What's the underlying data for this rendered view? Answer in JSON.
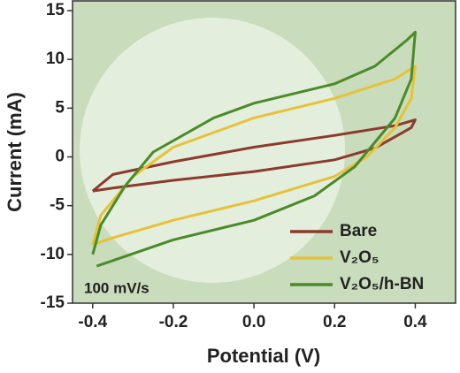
{
  "chart_data": {
    "type": "line",
    "xlabel": "Potential (V)",
    "ylabel": "Current (mA)",
    "annotation": "100 mV/s",
    "xlim": [
      -0.45,
      0.5
    ],
    "ylim": [
      -15,
      16
    ],
    "xticks": [
      -0.4,
      -0.2,
      {
        "value": 0,
        "label": "0.0"
      },
      0.2,
      0.4
    ],
    "yticks": [
      -15,
      -10,
      -5,
      0,
      5,
      10,
      15
    ],
    "legend": "lower right",
    "series": [
      {
        "name": "Bare",
        "color": "#8b3a2e",
        "x": [
          -0.4,
          -0.35,
          -0.2,
          0,
          0.2,
          0.35,
          0.4,
          0.39,
          0.3,
          0.2,
          0,
          -0.2,
          -0.35,
          -0.4
        ],
        "values": [
          -3.5,
          -1.8,
          -0.5,
          1,
          2.2,
          3.2,
          3.8,
          3,
          0.9,
          -0.3,
          -1.5,
          -2.4,
          -3.2,
          -3.5
        ]
      },
      {
        "name": "V₂O₅",
        "color": "#e6c23a",
        "x": [
          -0.4,
          -0.38,
          -0.3,
          -0.2,
          0,
          0.2,
          0.35,
          0.4,
          0.39,
          0.35,
          0.28,
          0.2,
          0,
          -0.2,
          -0.35,
          -0.4
        ],
        "values": [
          -9,
          -6,
          -2,
          1,
          4,
          6,
          8,
          9.3,
          6,
          3,
          0,
          -2,
          -4.5,
          -6.5,
          -8.3,
          -9
        ]
      },
      {
        "name": "V₂O₅/h-BN",
        "color": "#4a8a2a",
        "x": [
          -0.4,
          -0.38,
          -0.32,
          -0.25,
          -0.1,
          0,
          0.2,
          0.3,
          0.38,
          0.4,
          0.39,
          0.35,
          0.3,
          0.25,
          0.15,
          0,
          -0.2,
          -0.39
        ],
        "values": [
          -10,
          -7,
          -3,
          0.5,
          4,
          5.5,
          7.5,
          9.3,
          12,
          12.8,
          8,
          4,
          1.5,
          -1,
          -4,
          -6.5,
          -8.5,
          -11.2
        ]
      }
    ]
  }
}
